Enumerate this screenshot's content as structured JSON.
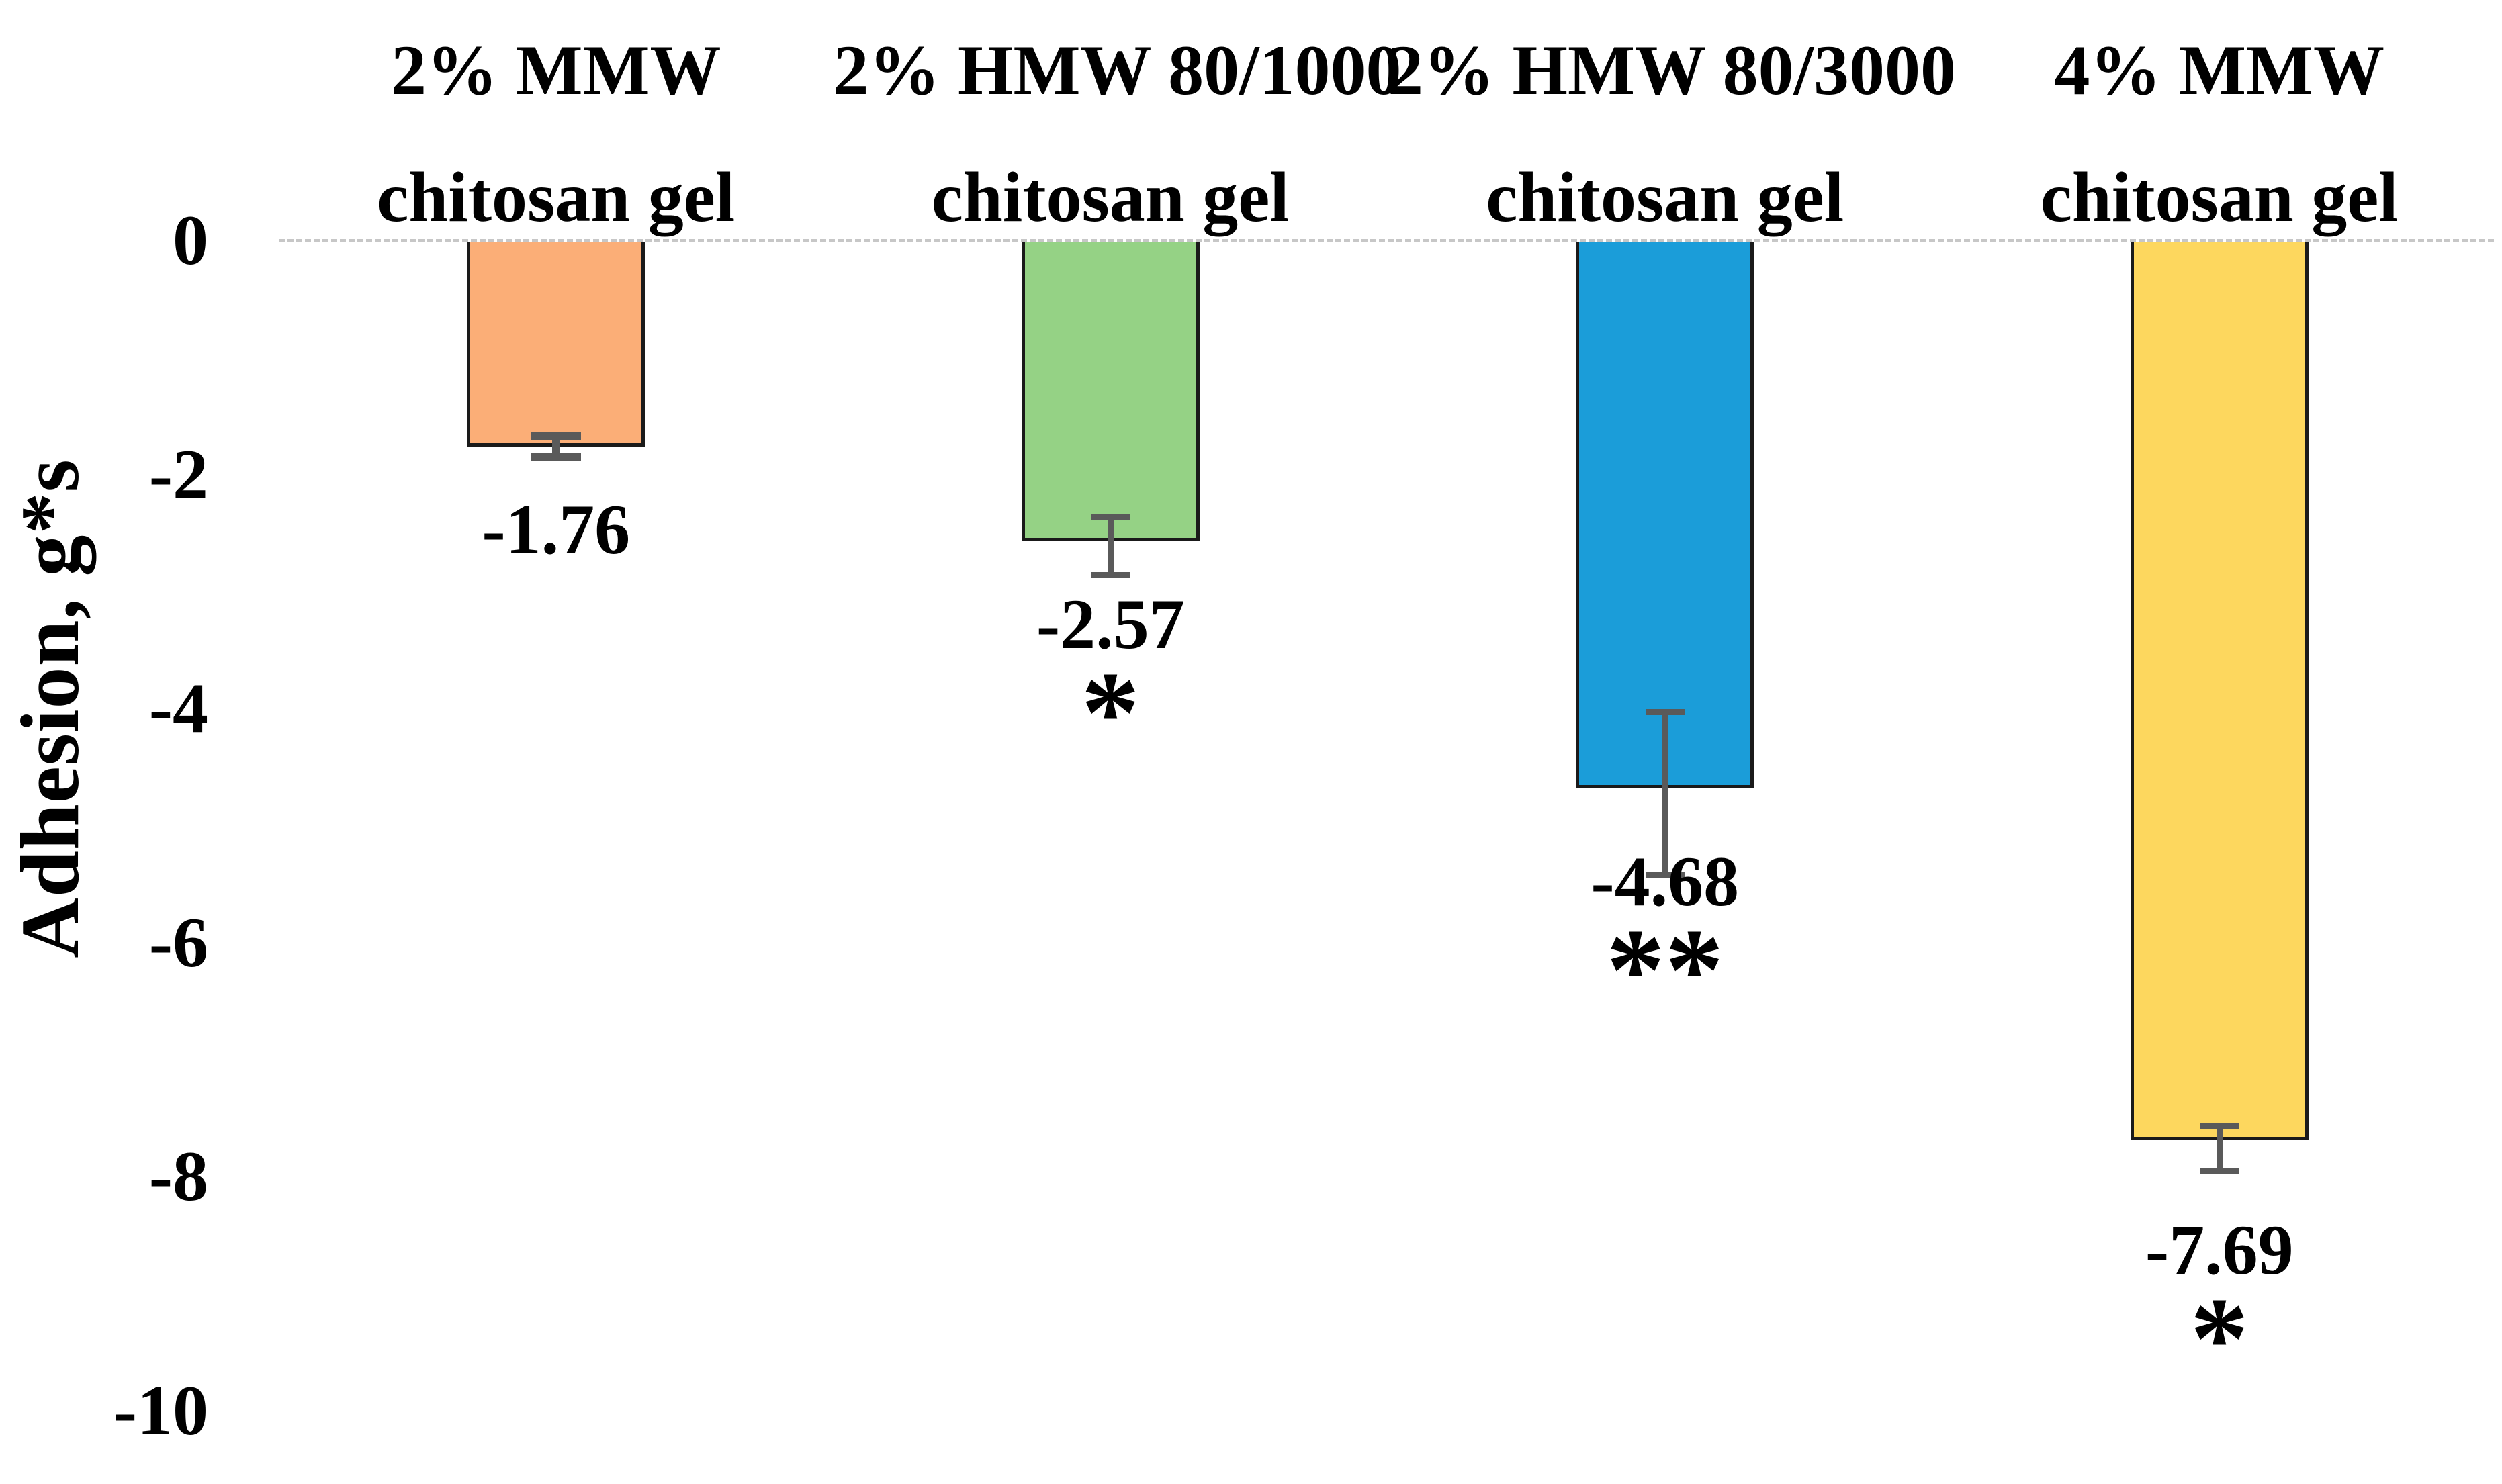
{
  "figure": {
    "background": "#ffffff"
  },
  "chart_data": {
    "type": "bar",
    "title": "",
    "xlabel": "",
    "ylabel": "Adhesion, g*s",
    "ylim": [
      0,
      -10
    ],
    "yticks": [
      "0",
      "-2",
      "-4",
      "-6",
      "-8",
      "-10"
    ],
    "ytick_values": [
      0,
      -2,
      -4,
      -6,
      -8,
      -10
    ],
    "grid": false,
    "legend": null,
    "baseline_value": 0,
    "categories": [
      "2% MMW chitosan gel",
      "2% HMW 80/1000 chitosan gel",
      "2% HMW 80/3000 chitosan gel",
      "4% MMW chitosan gel"
    ],
    "category_label_lines": [
      [
        "2% MMW",
        "chitosan gel"
      ],
      [
        "2% HMW 80/1000",
        "chitosan gel"
      ],
      [
        "2% HMW 80/3000",
        "chitosan gel"
      ],
      [
        "4% MMW",
        "chitosan gel"
      ]
    ],
    "values": [
      -1.76,
      -2.57,
      -4.68,
      -7.69
    ],
    "data_labels": [
      "-1.76",
      "-2.57",
      "-4.68",
      "-7.69"
    ],
    "significance_labels": [
      "",
      "*",
      "**",
      "*"
    ],
    "error_bars": [
      {
        "upper": -1.67,
        "lower": -1.85
      },
      {
        "upper": -2.36,
        "lower": -2.86
      },
      {
        "upper": -4.03,
        "lower": -5.42
      },
      {
        "upper": -7.57,
        "lower": -7.95
      }
    ],
    "colors": {
      "bars": [
        "#FBAE77",
        "#95D285",
        "#1B9DD9",
        "#FDD75E"
      ],
      "bar_border": "#1a1a1a",
      "error_bar": "#5a5a5a",
      "baseline": "#c7c7c7",
      "text": "#000000"
    }
  }
}
